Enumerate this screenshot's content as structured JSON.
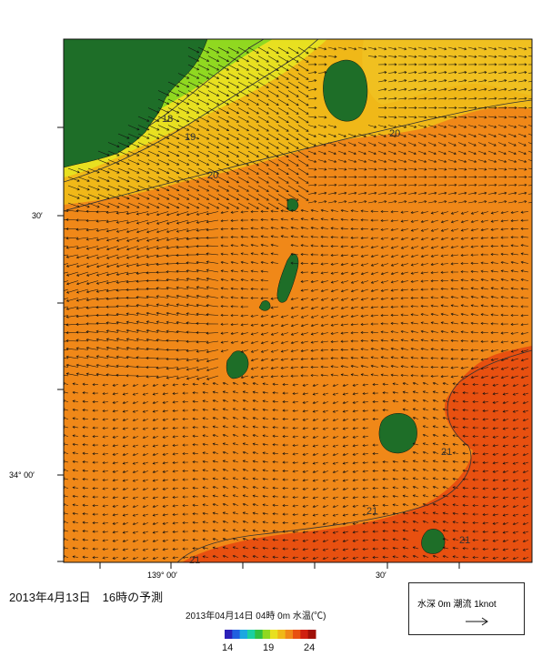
{
  "title_forecast": "2013年4月13日　16時の予測",
  "subtitle": "2013年04月14日 04時 0m 水温(℃)",
  "colorbar": {
    "min_label": "14",
    "mid_label": "19",
    "max_label": "24",
    "colors": [
      "#2b20b8",
      "#2060e0",
      "#1aa8e0",
      "#1ad0a0",
      "#30c040",
      "#90d820",
      "#e8e020",
      "#f0b818",
      "#f08818",
      "#e85010",
      "#d02010",
      "#a01008"
    ]
  },
  "legend": {
    "text": "水深 0m 潮流 1knot"
  },
  "axes": {
    "lat_ticks": [
      "30′",
      "34° 00′"
    ],
    "lon_ticks": [
      "139° 00′",
      "30′"
    ]
  },
  "contour_labels": [
    "18",
    "19",
    "20",
    "20",
    "21",
    "21",
    "21",
    "21"
  ],
  "colors": {
    "land": "#1e6e28",
    "warm": "#f08818",
    "hot": "#e85010",
    "mid": "#f0b818",
    "cool": "#e8e020",
    "cold": "#90d820"
  }
}
